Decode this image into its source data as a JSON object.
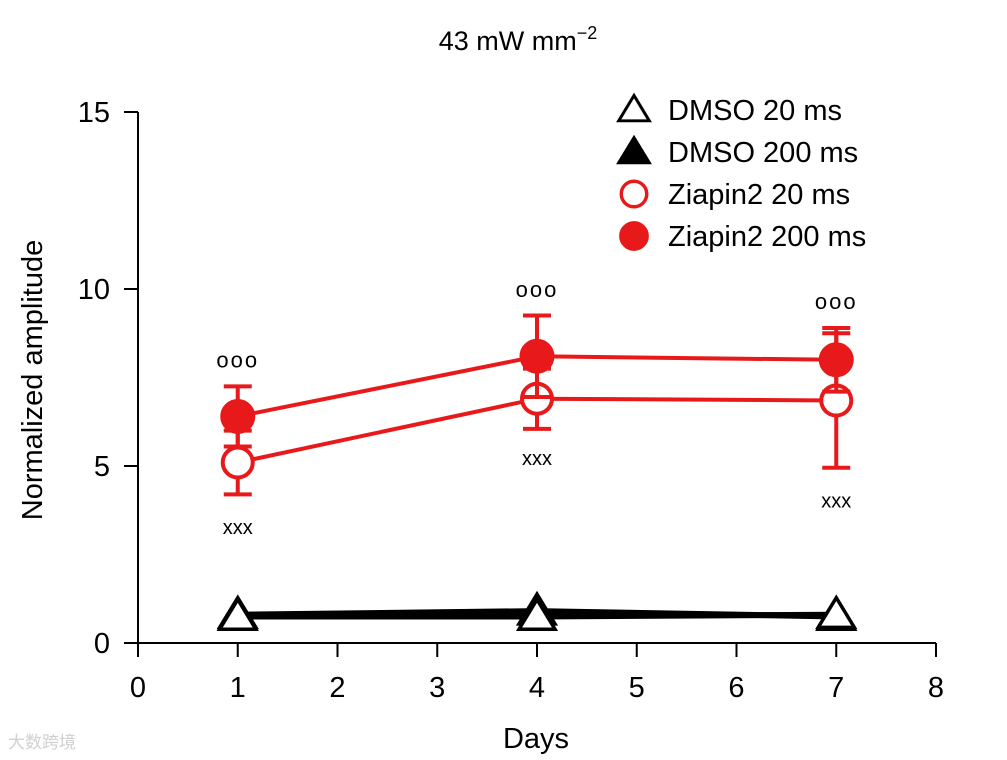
{
  "chart_data": {
    "type": "line",
    "title": "43 mW mm",
    "title_superscript": "−2",
    "xlabel": "Days",
    "ylabel": "Normalized amplitude",
    "xlim": [
      0,
      8
    ],
    "ylim": [
      0,
      15
    ],
    "x_ticks": [
      0,
      1,
      2,
      3,
      4,
      5,
      6,
      7,
      8
    ],
    "y_ticks": [
      0,
      5,
      10,
      15
    ],
    "x": [
      1,
      4,
      7
    ],
    "legend_position": "top-right",
    "series": [
      {
        "name": "DMSO 20 ms",
        "marker": "triangle-open",
        "color": "#000000",
        "values": [
          0.75,
          0.75,
          0.8
        ],
        "error": [
          0,
          0,
          0
        ]
      },
      {
        "name": "DMSO 200 ms",
        "marker": "triangle-filled",
        "color": "#000000",
        "values": [
          0.8,
          0.9,
          0.75
        ],
        "error": [
          0,
          0,
          0
        ]
      },
      {
        "name": "Ziapin2 20 ms",
        "marker": "circle-open",
        "color": "#e8191a",
        "values": [
          5.1,
          6.9,
          6.85
        ],
        "error": [
          0.9,
          0.85,
          1.9
        ]
      },
      {
        "name": "Ziapin2 200 ms",
        "marker": "circle-filled",
        "color": "#e8191a",
        "values": [
          6.4,
          8.1,
          8.0
        ],
        "error": [
          0.85,
          1.15,
          0.9
        ]
      }
    ],
    "annotations": [
      {
        "text": "ooo",
        "x": 1,
        "y": 7.95
      },
      {
        "text": "ooo",
        "x": 4,
        "y": 9.95
      },
      {
        "text": "ooo",
        "x": 7,
        "y": 9.6
      },
      {
        "text": "xxx",
        "x": 1,
        "y": 3.25
      },
      {
        "text": "xxx",
        "x": 4,
        "y": 5.2
      },
      {
        "text": "xxx",
        "x": 7,
        "y": 4.0
      }
    ]
  },
  "watermark": "大数跨境"
}
